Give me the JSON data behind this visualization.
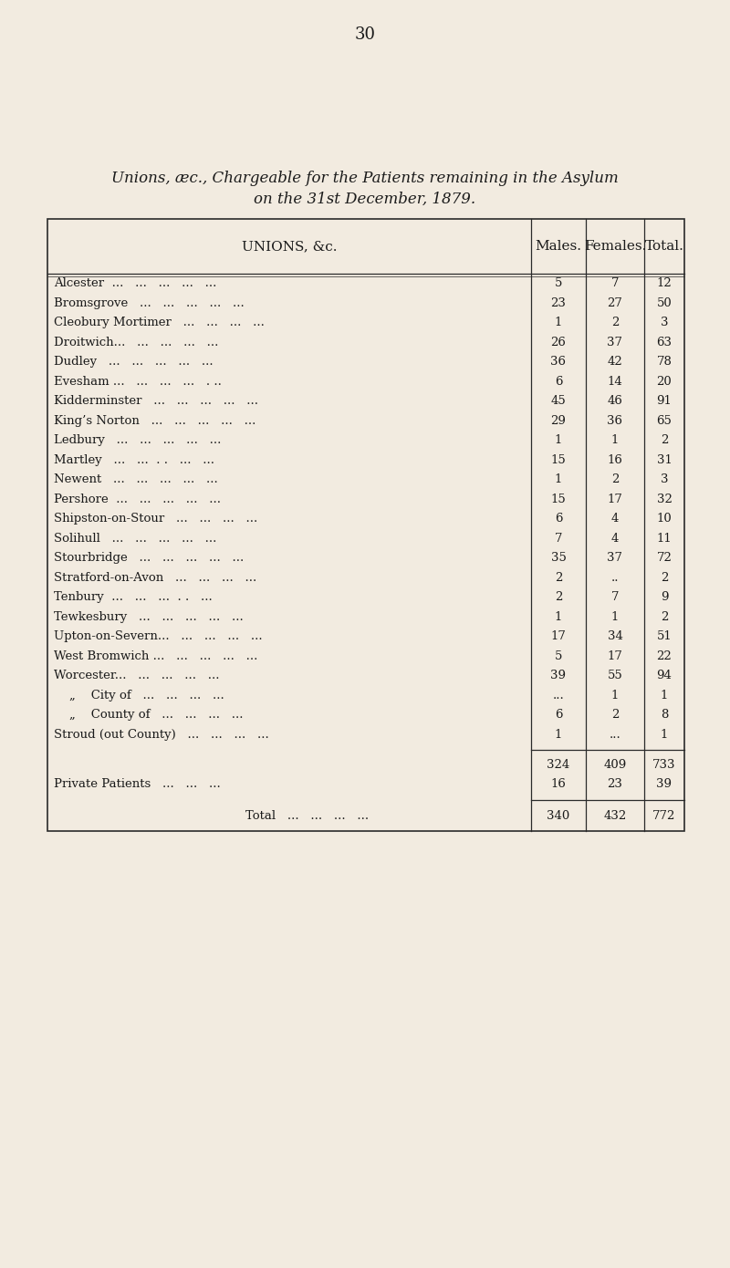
{
  "page_number": "30",
  "title_line1": "Unions, æc., Chargeable for the Patients remaining in the Asylum",
  "title_line2": "on the 31st December, 1879.",
  "col_headers": [
    "UNIONS, &c.",
    "Males.",
    "Females.",
    "Total."
  ],
  "rows": [
    {
      "name": "Alcester  ...   ...   ...   ...   ...",
      "males": "5",
      "females": "7",
      "total": "12"
    },
    {
      "name": "Bromsgrove   ...   ...   ...   ...   ...",
      "males": "23",
      "females": "27",
      "total": "50"
    },
    {
      "name": "Cleobury Mortimer   ...   ...   ...   ...",
      "males": "1",
      "females": "2",
      "total": "3"
    },
    {
      "name": "Droitwich...   ...   ...   ...   ...",
      "males": "26",
      "females": "37",
      "total": "63"
    },
    {
      "name": "Dudley   ...   ...   ...   ...   ...",
      "males": "36",
      "females": "42",
      "total": "78"
    },
    {
      "name": "Evesham ...   ...   ...   ...   . ..",
      "males": "6",
      "females": "14",
      "total": "20"
    },
    {
      "name": "Kidderminster   ...   ...   ...   ...   ...",
      "males": "45",
      "females": "46",
      "total": "91"
    },
    {
      "name": "King’s Norton   ...   ...   ...   ...   ...",
      "males": "29",
      "females": "36",
      "total": "65"
    },
    {
      "name": "Ledbury   ...   ...   ...   ...   ...",
      "males": "1",
      "females": "1",
      "total": "2"
    },
    {
      "name": "Martley   ...   ...  . .   ...   ...",
      "males": "15",
      "females": "16",
      "total": "31"
    },
    {
      "name": "Newent   ...   ...   ...   ...   ...",
      "males": "1",
      "females": "2",
      "total": "3"
    },
    {
      "name": "Pershore  ...   ...   ...   ...   ...",
      "males": "15",
      "females": "17",
      "total": "32"
    },
    {
      "name": "Shipston-on-Stour   ...   ...   ...   ...",
      "males": "6",
      "females": "4",
      "total": "10"
    },
    {
      "name": "Solihull   ...   ...   ...   ...   ...",
      "males": "7",
      "females": "4",
      "total": "11"
    },
    {
      "name": "Stourbridge   ...   ...   ...   ...   ...",
      "males": "35",
      "females": "37",
      "total": "72"
    },
    {
      "name": "Stratford-on-Avon   ...   ...   ...   ...",
      "males": "2",
      "females": "..",
      "total": "2"
    },
    {
      "name": "Tenbury  ...   ...   ...  . .   ...",
      "males": "2",
      "females": "7",
      "total": "9"
    },
    {
      "name": "Tewkesbury   ...   ...   ...   ...   ...",
      "males": "1",
      "females": "1",
      "total": "2"
    },
    {
      "name": "Upton-on-Severn...   ...   ...   ...   ...",
      "males": "17",
      "females": "34",
      "total": "51"
    },
    {
      "name": "West Bromwich ...   ...   ...   ...   ...",
      "males": "5",
      "females": "17",
      "total": "22"
    },
    {
      "name": "Worcester...   ...   ...   ...   ...",
      "males": "39",
      "females": "55",
      "total": "94"
    },
    {
      "name": "    „    City of   ...   ...   ...   ...",
      "males": "...",
      "females": "1",
      "total": "1"
    },
    {
      "name": "    „    County of   ...   ...   ...   ...",
      "males": "6",
      "females": "2",
      "total": "8"
    },
    {
      "name": "Stroud (out County)   ...   ...   ...   ...",
      "males": "1",
      "females": "...",
      "total": "1"
    }
  ],
  "subtotal": {
    "males": "324",
    "females": "409",
    "total": "733"
  },
  "private": {
    "label": "Private Patients   ...   ...   ...",
    "males": "16",
    "females": "23",
    "total": "39"
  },
  "grand_total": {
    "label": "Total   ...   ...   ...   ...",
    "males": "340",
    "females": "432",
    "total": "772"
  },
  "bg_color": "#f2ebe0",
  "text_color": "#1a1a1a",
  "table_line_color": "#2a2a2a"
}
